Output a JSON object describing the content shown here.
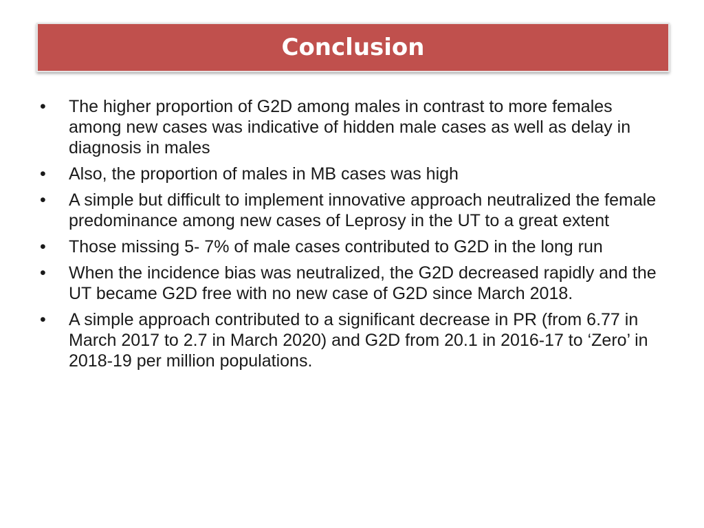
{
  "title": "Conclusion",
  "bullet_symbol": "•",
  "bullets": [
    "The higher proportion of G2D among males in contrast to more females among new cases was indicative of hidden male cases as well as delay in diagnosis in males",
    "Also, the proportion of males in MB cases was high",
    "A simple but difficult to implement innovative approach neutralized the female predominance among new cases of Leprosy in the UT to a great extent",
    "Those missing 5- 7% of male cases contributed to G2D in the long run",
    "When the incidence bias was neutralized, the G2D decreased rapidly and the UT became G2D free with no new case of G2D since March 2018.",
    "A simple approach contributed to a significant decrease in PR (from 6.77 in March 2017 to 2.7 in March 2020) and G2D from 20.1 in 2016-17 to ‘Zero’ in 2018-19 per million populations."
  ],
  "colors": {
    "title_bar": "#c0504d",
    "title_text": "#ffffff",
    "body_text": "#1a1a1a"
  }
}
